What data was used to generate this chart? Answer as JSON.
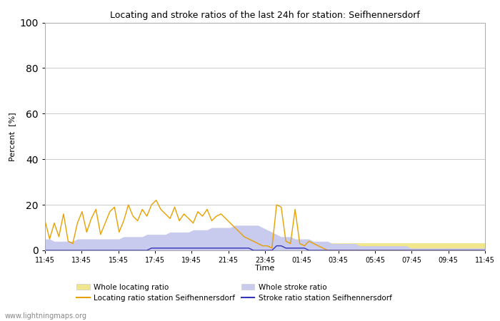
{
  "title": "Locating and stroke ratios of the last 24h for station: Seifhennersdorf",
  "xlabel": "Time",
  "ylabel": "Percent  [%]",
  "ylim": [
    0,
    100
  ],
  "yticks": [
    0,
    20,
    40,
    60,
    80,
    100
  ],
  "x_labels": [
    "11:45",
    "13:45",
    "15:45",
    "17:45",
    "19:45",
    "21:45",
    "23:45",
    "01:45",
    "03:45",
    "05:45",
    "07:45",
    "09:45",
    "11:45"
  ],
  "fill_locating_color": "#f0e68c",
  "fill_stroke_color": "#c8caee",
  "line_locating_color": "#e8a000",
  "line_stroke_color": "#3333bb",
  "background_color": "#ffffff",
  "grid_color": "#cccccc",
  "watermark": "www.lightningmaps.org",
  "legend_labels": [
    "Whole locating ratio",
    "Whole stroke ratio",
    "Locating ratio station Seifhennersdorf",
    "Stroke ratio station Seifhennersdorf"
  ],
  "whole_locating": [
    3,
    3,
    3,
    3,
    3,
    3,
    3,
    3,
    3,
    3,
    3,
    3,
    3,
    3,
    3,
    3,
    3,
    3,
    3,
    3,
    3,
    3,
    3,
    3,
    3,
    3,
    3,
    3,
    3,
    3,
    3,
    3,
    3,
    3,
    3,
    3,
    3,
    3,
    3,
    3,
    3,
    3,
    3,
    3,
    3,
    3,
    3,
    3,
    3,
    3,
    3,
    3,
    3,
    3,
    3,
    3,
    3,
    3,
    3,
    3,
    3,
    3,
    3,
    3,
    3,
    3,
    3,
    3,
    3,
    3,
    3,
    3,
    3,
    3,
    3,
    3,
    3,
    3,
    3,
    3,
    3,
    3,
    3,
    3,
    3,
    3,
    3,
    3,
    3,
    3,
    3,
    3,
    3,
    3,
    3,
    3
  ],
  "whole_stroke": [
    5,
    5,
    4,
    4,
    4,
    4,
    4,
    5,
    5,
    5,
    5,
    5,
    5,
    5,
    5,
    5,
    5,
    6,
    6,
    6,
    6,
    6,
    7,
    7,
    7,
    7,
    7,
    8,
    8,
    8,
    8,
    8,
    9,
    9,
    9,
    9,
    10,
    10,
    10,
    10,
    10,
    11,
    11,
    11,
    11,
    11,
    11,
    10,
    9,
    8,
    7,
    6,
    6,
    6,
    5,
    5,
    5,
    5,
    4,
    4,
    4,
    4,
    3,
    3,
    3,
    3,
    3,
    3,
    2,
    2,
    2,
    2,
    2,
    2,
    2,
    2,
    2,
    2,
    2,
    1,
    1,
    1,
    1,
    1,
    1,
    1,
    1,
    1,
    1,
    1,
    1,
    1,
    1,
    1,
    1,
    1
  ],
  "station_locating": [
    13,
    5,
    12,
    6,
    16,
    4,
    3,
    12,
    17,
    8,
    14,
    18,
    7,
    12,
    17,
    19,
    8,
    13,
    20,
    15,
    13,
    18,
    15,
    20,
    22,
    18,
    16,
    14,
    19,
    13,
    16,
    14,
    12,
    17,
    15,
    18,
    13,
    15,
    16,
    14,
    12,
    10,
    8,
    6,
    5,
    4,
    3,
    2,
    2,
    1,
    20,
    19,
    4,
    3,
    18,
    3,
    2,
    4,
    3,
    2,
    1,
    0,
    0,
    0,
    0,
    0,
    0,
    0,
    0,
    0,
    0,
    0,
    0,
    0,
    0,
    0,
    0,
    0,
    0,
    0,
    0,
    0,
    0,
    0,
    0,
    0,
    0,
    0,
    0,
    0,
    0,
    0,
    0,
    0,
    0,
    0
  ],
  "station_stroke": [
    0,
    0,
    0,
    0,
    0,
    0,
    0,
    0,
    0,
    0,
    0,
    0,
    0,
    0,
    0,
    0,
    0,
    0,
    0,
    0,
    0,
    0,
    0,
    1,
    1,
    1,
    1,
    1,
    1,
    1,
    1,
    1,
    1,
    1,
    1,
    1,
    1,
    1,
    1,
    1,
    1,
    1,
    1,
    1,
    1,
    0,
    0,
    0,
    0,
    0,
    2,
    2,
    1,
    1,
    1,
    1,
    1,
    0,
    0,
    0,
    0,
    0,
    0,
    0,
    0,
    0,
    0,
    0,
    0,
    0,
    0,
    0,
    0,
    0,
    0,
    0,
    0,
    0,
    0,
    0,
    0,
    0,
    0,
    0,
    0,
    0,
    0,
    0,
    0,
    0,
    0,
    0,
    0,
    0,
    0,
    0
  ]
}
